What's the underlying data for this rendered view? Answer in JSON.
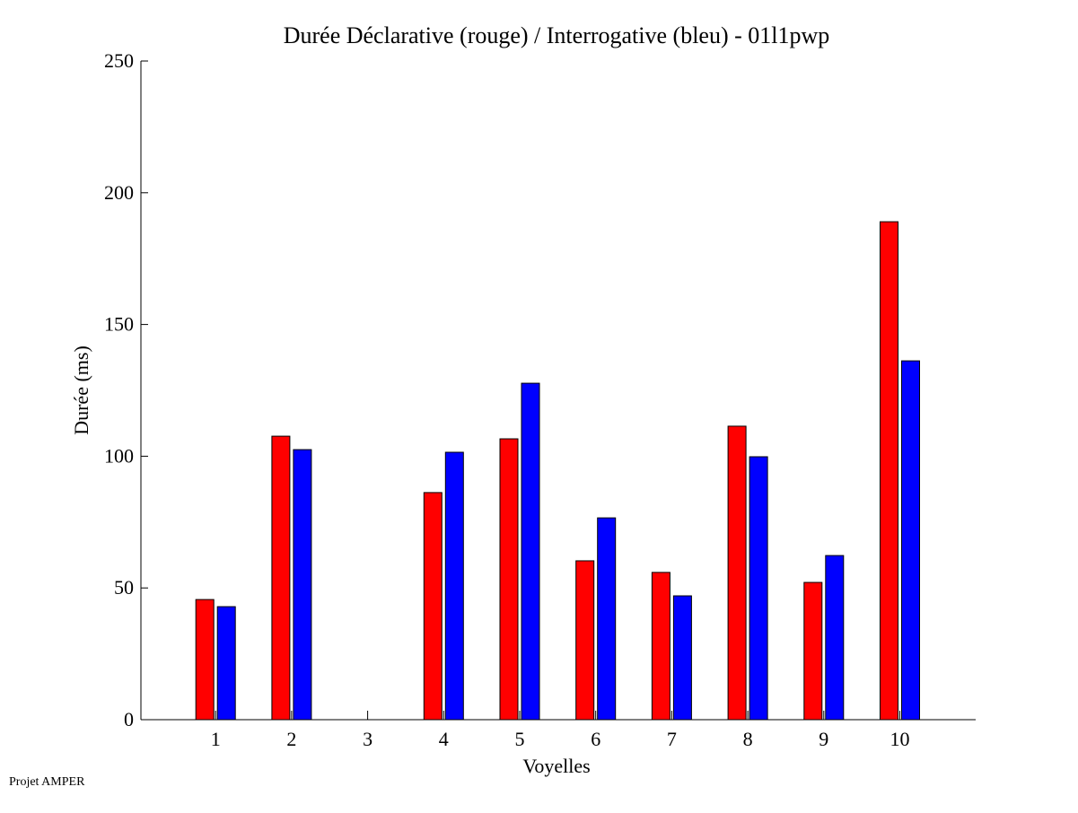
{
  "chart_data": {
    "type": "bar",
    "title": "Durée Déclarative (rouge) / Interrogative (bleu) - 01l1pwp",
    "xlabel": "Voyelles",
    "ylabel": "Durée (ms)",
    "ylim": [
      0,
      250
    ],
    "yticks": [
      0,
      50,
      100,
      150,
      200,
      250
    ],
    "categories": [
      "1",
      "2",
      "3",
      "4",
      "5",
      "6",
      "7",
      "8",
      "9",
      "10"
    ],
    "series": [
      {
        "name": "Déclarative",
        "color": "#ff0000",
        "values": [
          45.6,
          107.6,
          0,
          86.2,
          106.6,
          60.3,
          55.9,
          111.4,
          52.1,
          189.0
        ]
      },
      {
        "name": "Interrogative",
        "color": "#0000ff",
        "values": [
          42.9,
          102.5,
          0,
          101.5,
          127.7,
          76.6,
          47.0,
          99.8,
          62.3,
          136.2
        ]
      }
    ],
    "grid": false
  },
  "footer": "Projet AMPER"
}
